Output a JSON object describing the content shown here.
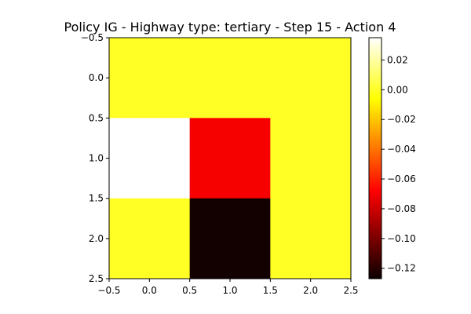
{
  "chart_data": {
    "type": "heatmap",
    "title": "Policy IG - Highway type: tertiary - Step 15 - Action 4",
    "xlabel": "",
    "ylabel": "",
    "x_centers": [
      0,
      1,
      2
    ],
    "y_centers": [
      0,
      1,
      2
    ],
    "xlim": [
      -0.5,
      2.5
    ],
    "ylim": [
      2.5,
      -0.5
    ],
    "x_ticks": [
      "−0.5",
      "0.0",
      "0.5",
      "1.0",
      "1.5",
      "2.0",
      "2.5"
    ],
    "y_ticks": [
      "−0.5",
      "0.0",
      "0.5",
      "1.0",
      "1.5",
      "2.0",
      "2.5"
    ],
    "values": [
      [
        0.0,
        0.0,
        0.0
      ],
      [
        0.035,
        -0.07,
        0.0
      ],
      [
        0.0,
        -0.125,
        0.0
      ]
    ],
    "colormap": "hot",
    "colorbar": {
      "vmin": -0.127,
      "vmax": 0.035,
      "ticks": [
        0.02,
        0.0,
        -0.02,
        -0.04,
        -0.06,
        -0.08,
        -0.1,
        -0.12
      ],
      "tick_labels": [
        "0.02",
        "0.00",
        "−0.02",
        "−0.04",
        "−0.06",
        "−0.08",
        "−0.10",
        "−0.12"
      ]
    },
    "grid": false
  }
}
